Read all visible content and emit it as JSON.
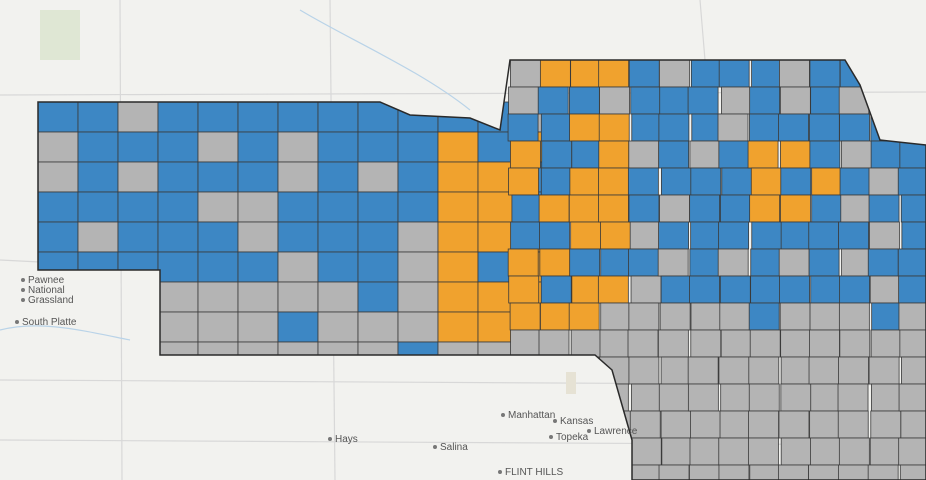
{
  "labels": [
    {
      "text": "Manhattan"
    },
    {
      "text": "Hays"
    },
    {
      "text": "Salina"
    },
    {
      "text": "Topeka"
    },
    {
      "text": "Lawrence"
    },
    {
      "text": "Kansas"
    },
    {
      "text": "FLINT HILLS"
    },
    {
      "text": "Pawnee"
    },
    {
      "text": "National"
    },
    {
      "text": "Grassland"
    },
    {
      "text": "South Platte"
    }
  ]
}
